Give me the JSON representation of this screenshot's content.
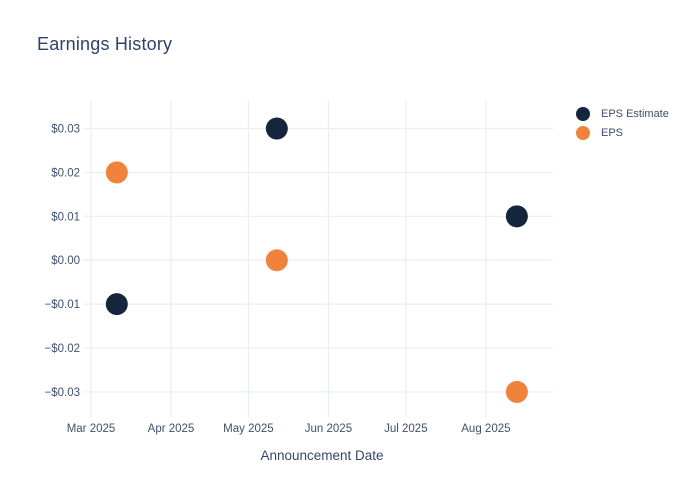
{
  "page": {
    "title": "Earnings History"
  },
  "x_axis_title": "Announcement Date",
  "legend": {
    "items": [
      {
        "label": "EPS Estimate",
        "color": "#15253d"
      },
      {
        "label": "EPS",
        "color": "#f0823c"
      }
    ]
  },
  "colors": {
    "background": "#ffffff",
    "grid": "#e9edf4",
    "title_text": "#2e4369",
    "axis_text": "#3f516e",
    "eps_estimate_marker": "#15253d",
    "eps_marker": "#f0823c"
  },
  "chart_data": {
    "type": "scatter",
    "title": "Earnings History",
    "xlabel": "Announcement Date",
    "ylabel": "",
    "grid": true,
    "legend_position": "right",
    "marker_radius": 11,
    "x_tick_labels": [
      "Mar 2025",
      "Apr 2025",
      "May 2025",
      "Jun 2025",
      "Jul 2025",
      "Aug 2025"
    ],
    "x_tick_days": [
      0,
      31,
      61,
      92,
      122,
      153
    ],
    "x_domain_days": [
      0,
      179
    ],
    "y_ticks": [
      0.03,
      0.02,
      0.01,
      0,
      -0.01,
      -0.02,
      -0.03
    ],
    "y_tick_labels": [
      "$0.03",
      "$0.02",
      "$0.01",
      "$0.00",
      "−$0.01",
      "−$0.02",
      "−$0.03"
    ],
    "ylim": [
      -0.0348,
      0.0365
    ],
    "series": [
      {
        "name": "EPS Estimate",
        "color": "#15253d",
        "x_days": [
          10,
          72,
          165
        ],
        "x_dates_approx": [
          "2025-03-11",
          "2025-05-12",
          "2025-08-13"
        ],
        "values": [
          -0.01,
          0.03,
          0.01
        ]
      },
      {
        "name": "EPS",
        "color": "#f0823c",
        "x_days": [
          10,
          72,
          165
        ],
        "x_dates_approx": [
          "2025-03-11",
          "2025-05-12",
          "2025-08-13"
        ],
        "values": [
          0.02,
          0.0,
          -0.03
        ]
      }
    ]
  }
}
